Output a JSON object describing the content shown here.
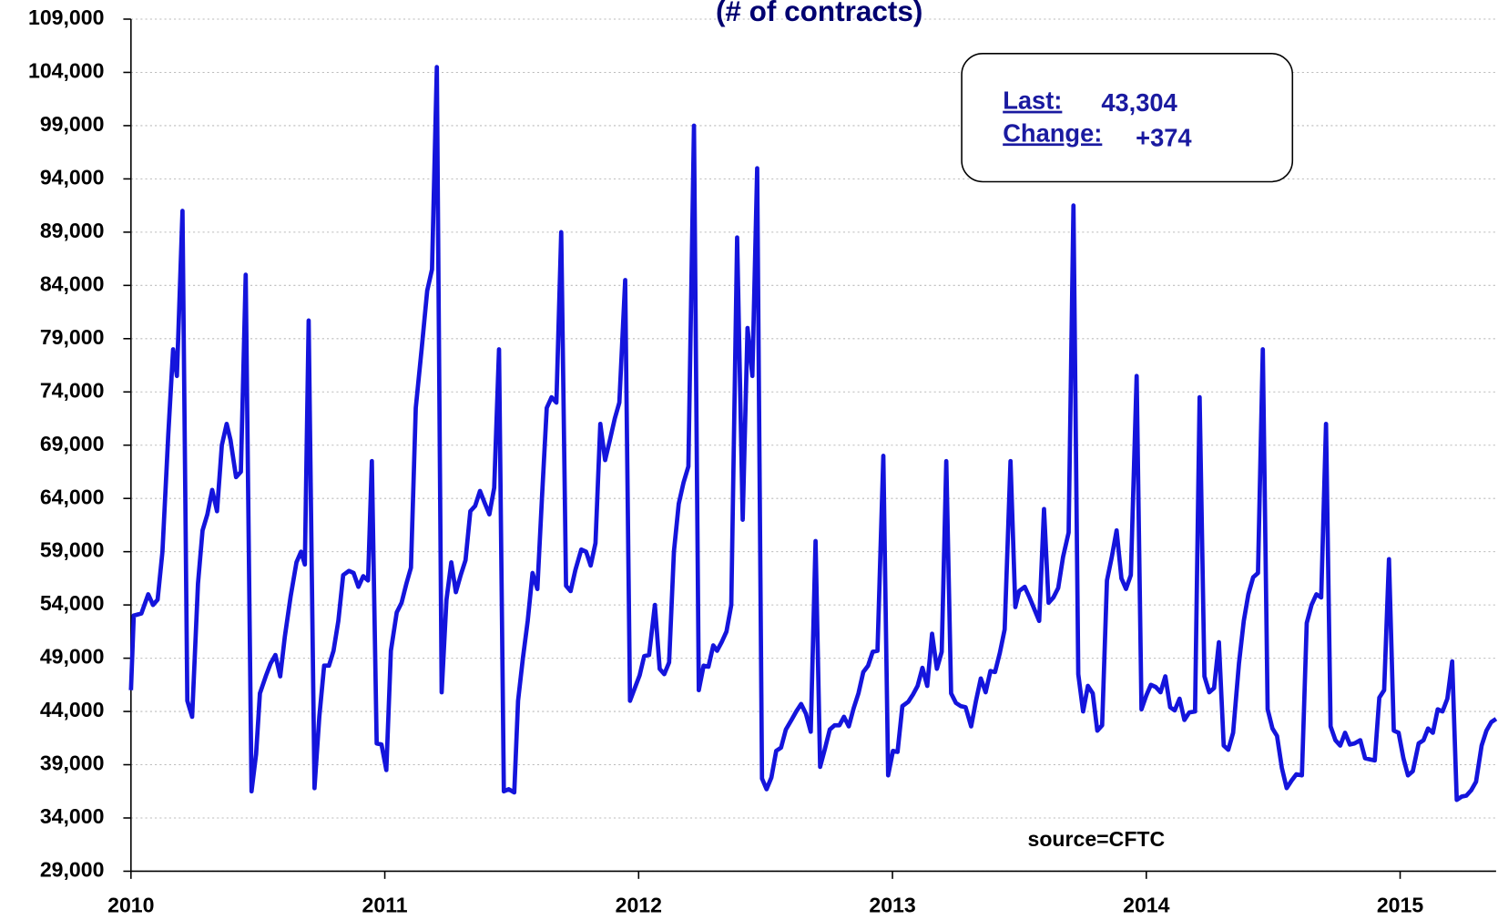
{
  "chart_data": {
    "type": "line",
    "title": "(# of contracts)",
    "source": "source=CFTC",
    "annotation": {
      "last_label": "Last:",
      "last_value": "43,304",
      "change_label": "Change:",
      "change_value": "+374"
    },
    "color": "#1414dc",
    "grid": true,
    "xlim": [
      2010,
      2015.378
    ],
    "xticks": [
      2010,
      2011,
      2012,
      2013,
      2014,
      2015
    ],
    "ylim": [
      29000,
      109000
    ],
    "yticks": [
      {
        "value": 29000,
        "label": "29,000"
      },
      {
        "value": 34000,
        "label": "34,000"
      },
      {
        "value": 39000,
        "label": "39,000"
      },
      {
        "value": 44000,
        "label": "44,000"
      },
      {
        "value": 49000,
        "label": "49,000"
      },
      {
        "value": 54000,
        "label": "54,000"
      },
      {
        "value": 59000,
        "label": "59,000"
      },
      {
        "value": 64000,
        "label": "64,000"
      },
      {
        "value": 69000,
        "label": "69,000"
      },
      {
        "value": 74000,
        "label": "74,000"
      },
      {
        "value": 79000,
        "label": "79,000"
      },
      {
        "value": 84000,
        "label": "84,000"
      },
      {
        "value": 89000,
        "label": "89,000"
      },
      {
        "value": 94000,
        "label": "94,000"
      },
      {
        "value": 99000,
        "label": "99,000"
      },
      {
        "value": 104000,
        "label": "104,000"
      },
      {
        "value": 109000,
        "label": "109,000"
      }
    ],
    "x": [
      2010.0,
      2010.011,
      2010.041,
      2010.068,
      2010.087,
      2010.105,
      2010.124,
      2010.147,
      2010.166,
      2010.181,
      2010.203,
      2010.222,
      2010.241,
      2010.264,
      2010.282,
      2010.301,
      2010.32,
      2010.339,
      2010.358,
      2010.377,
      2010.392,
      2010.414,
      2010.433,
      2010.452,
      2010.475,
      2010.493,
      2010.508,
      2010.531,
      2010.55,
      2010.569,
      2010.588,
      2010.606,
      2010.629,
      2010.652,
      2010.67,
      2010.685,
      2010.7,
      2010.723,
      2010.742,
      2010.761,
      2010.78,
      2010.798,
      2010.817,
      2010.836,
      2010.859,
      2010.877,
      2010.896,
      2010.915,
      2010.934,
      2010.949,
      2010.968,
      2010.987,
      2011.006,
      2011.024,
      2011.047,
      2011.066,
      2011.085,
      2011.103,
      2011.122,
      2011.145,
      2011.167,
      2011.186,
      2011.205,
      2011.224,
      2011.243,
      2011.262,
      2011.28,
      2011.299,
      2011.318,
      2011.337,
      2011.356,
      2011.375,
      2011.393,
      2011.412,
      2011.431,
      2011.45,
      2011.469,
      2011.488,
      2011.51,
      2011.525,
      2011.544,
      2011.563,
      2011.582,
      2011.601,
      2011.619,
      2011.638,
      2011.657,
      2011.676,
      2011.695,
      2011.714,
      2011.732,
      2011.751,
      2011.774,
      2011.793,
      2011.811,
      2011.83,
      2011.849,
      2011.868,
      2011.887,
      2011.906,
      2011.924,
      2011.947,
      2011.966,
      2011.985,
      2012.004,
      2012.022,
      2012.041,
      2012.064,
      2012.083,
      2012.101,
      2012.12,
      2012.139,
      2012.158,
      2012.177,
      2012.196,
      2012.218,
      2012.237,
      2012.256,
      2012.275,
      2012.294,
      2012.309,
      2012.327,
      2012.346,
      2012.365,
      2012.388,
      2012.41,
      2012.429,
      2012.448,
      2012.467,
      2012.486,
      2012.504,
      2012.523,
      2012.542,
      2012.561,
      2012.58,
      2012.602,
      2012.621,
      2012.64,
      2012.659,
      2012.678,
      2012.697,
      2012.715,
      2012.734,
      2012.753,
      2012.772,
      2012.791,
      2012.809,
      2012.828,
      2012.847,
      2012.866,
      2012.885,
      2012.904,
      2012.922,
      2012.941,
      2012.964,
      2012.983,
      2013.002,
      2013.02,
      2013.039,
      2013.062,
      2013.081,
      2013.099,
      2013.118,
      2013.137,
      2013.156,
      2013.175,
      2013.194,
      2013.212,
      2013.231,
      2013.25,
      2013.269,
      2013.288,
      2013.31,
      2013.329,
      2013.348,
      2013.367,
      2013.386,
      2013.404,
      2013.423,
      2013.442,
      2013.465,
      2013.484,
      2013.499,
      2013.521,
      2013.54,
      2013.559,
      2013.578,
      2013.597,
      2013.615,
      2013.634,
      2013.653,
      2013.672,
      2013.694,
      2013.713,
      2013.732,
      2013.751,
      2013.77,
      2013.789,
      2013.807,
      2013.826,
      2013.845,
      2013.864,
      2013.883,
      2013.902,
      2013.92,
      2013.939,
      2013.962,
      2013.981,
      2014.0,
      2014.018,
      2014.037,
      2014.056,
      2014.075,
      2014.094,
      2014.112,
      2014.131,
      2014.15,
      2014.169,
      2014.192,
      2014.21,
      2014.229,
      2014.248,
      2014.267,
      2014.286,
      2014.305,
      2014.323,
      2014.342,
      2014.365,
      2014.384,
      2014.402,
      2014.421,
      2014.44,
      2014.459,
      2014.478,
      2014.497,
      2014.515,
      2014.534,
      2014.553,
      2014.572,
      2014.591,
      2014.613,
      2014.632,
      2014.651,
      2014.67,
      2014.689,
      2014.708,
      2014.726,
      2014.745,
      2014.764,
      2014.783,
      2014.802,
      2014.82,
      2014.843,
      2014.862,
      2014.881,
      2014.9,
      2014.918,
      2014.937,
      2014.956,
      2014.975,
      2014.994,
      2015.013,
      2015.031,
      2015.05,
      2015.073,
      2015.092,
      2015.11,
      2015.129,
      2015.148,
      2015.167,
      2015.186,
      2015.205,
      2015.223,
      2015.242,
      2015.261,
      2015.28,
      2015.299,
      2015.321,
      2015.34,
      2015.359,
      2015.378
    ],
    "values": [
      46000,
      53000,
      53200,
      55000,
      54000,
      54500,
      59000,
      70000,
      78000,
      75500,
      91000,
      45000,
      43500,
      56000,
      61000,
      62500,
      64800,
      62800,
      69000,
      71000,
      69500,
      66000,
      66500,
      85000,
      36500,
      40000,
      45700,
      47300,
      48500,
      49300,
      47300,
      51000,
      54800,
      58000,
      59000,
      57800,
      80700,
      36800,
      43500,
      48300,
      48300,
      49700,
      52500,
      56800,
      57200,
      57000,
      55700,
      56700,
      56300,
      67500,
      41000,
      40900,
      38500,
      49700,
      53300,
      54200,
      56000,
      57500,
      72500,
      78000,
      83500,
      85500,
      104500,
      45800,
      54500,
      58000,
      55200,
      56800,
      58200,
      62800,
      63300,
      64700,
      63600,
      62500,
      65000,
      78000,
      36500,
      36700,
      36400,
      45000,
      49000,
      52500,
      57000,
      55500,
      64000,
      72500,
      73500,
      73000,
      89000,
      55800,
      55300,
      57300,
      59200,
      59000,
      57700,
      59800,
      71000,
      67600,
      69500,
      71500,
      73000,
      84500,
      45000,
      46200,
      47400,
      49200,
      49300,
      54000,
      48000,
      47500,
      48600,
      59000,
      63500,
      65500,
      67000,
      99000,
      46000,
      48300,
      48200,
      50200,
      49700,
      50500,
      51500,
      54000,
      88500,
      62000,
      80000,
      75500,
      95000,
      37700,
      36700,
      37800,
      40300,
      40600,
      42300,
      43200,
      44000,
      44700,
      43800,
      42100,
      60000,
      38800,
      40500,
      42300,
      42700,
      42700,
      43500,
      42600,
      44300,
      45700,
      47700,
      48300,
      49600,
      49700,
      68000,
      38000,
      40300,
      40200,
      44500,
      44900,
      45600,
      46400,
      48100,
      46400,
      51300,
      48000,
      49600,
      67500,
      45700,
      44800,
      44500,
      44400,
      42600,
      45000,
      47100,
      45800,
      47800,
      47700,
      49500,
      51700,
      67500,
      53800,
      55300,
      55700,
      54700,
      53600,
      52500,
      63000,
      54200,
      54700,
      55600,
      58500,
      60800,
      91500,
      47500,
      44000,
      46400,
      45700,
      42200,
      42700,
      56300,
      58500,
      61000,
      56500,
      55500,
      56800,
      75500,
      44200,
      45500,
      46500,
      46300,
      45800,
      47300,
      44400,
      44100,
      45200,
      43200,
      43900,
      44000,
      73500,
      47300,
      45800,
      46200,
      50500,
      40800,
      40400,
      42000,
      48500,
      52500,
      55000,
      56600,
      57000,
      78000,
      44200,
      42400,
      41700,
      38700,
      36800,
      37500,
      38100,
      38000,
      52300,
      54000,
      55000,
      54700,
      71000,
      42600,
      41300,
      40800,
      42000,
      40900,
      41000,
      41300,
      39600,
      39500,
      39400,
      45300,
      46000,
      58300,
      42200,
      42000,
      39600,
      38000,
      38400,
      41000,
      41300,
      42400,
      42000,
      44200,
      44000,
      45200,
      48700,
      35700,
      36000,
      36100,
      36600,
      37400,
      40800,
      42200,
      43000,
      43304
    ]
  }
}
